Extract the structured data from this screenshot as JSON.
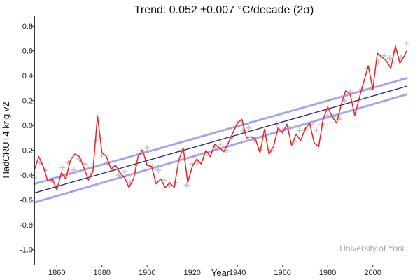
{
  "chart_data": {
    "type": "line",
    "title": "Trend: 0.052 ±0.007 °C/decade (2σ)",
    "xlabel": "Year",
    "ylabel": "HadCRUT4 krig v2",
    "xlim": [
      1850,
      2015
    ],
    "ylim": [
      -1.12,
      0.88
    ],
    "x_ticks": [
      1860,
      1880,
      1900,
      1920,
      1940,
      1960,
      1980,
      2000
    ],
    "y_ticks": [
      -1.0,
      -0.8,
      -0.6,
      -0.4,
      -0.2,
      0.0,
      0.2,
      0.4,
      0.6,
      0.8
    ],
    "grid": false,
    "watermark": "University of York",
    "colors": {
      "monthly_points": "#c4c4c4",
      "running_mean": "#ee2222",
      "trend": "#1f1f8f",
      "trend_interval": "#9c9cf0"
    },
    "series": [
      {
        "kind": "scatter",
        "x": [
          1850,
          1852.5,
          1855,
          1857.5,
          1860,
          1862.5,
          1865,
          1867.5,
          1870,
          1872.5,
          1875,
          1877.5,
          1880,
          1882.5,
          1885,
          1887.5,
          1890,
          1892.5,
          1895,
          1897.5,
          1900,
          1902.5,
          1905,
          1907.5,
          1910,
          1912.5,
          1915,
          1917.5,
          1920,
          1922.5,
          1925,
          1927.5,
          1930,
          1932.5,
          1935,
          1937.5,
          1940,
          1942.5,
          1945,
          1947.5,
          1950,
          1952.5,
          1955,
          1957.5,
          1960,
          1962.5,
          1965,
          1967.5,
          1970,
          1972.5,
          1975,
          1977.5,
          1980,
          1982.5,
          1985,
          1987.5,
          1990,
          1992.5,
          1995,
          1997.5,
          2000,
          2002.5,
          2005,
          2007.5,
          2010,
          2012.5,
          2015
        ],
        "y": [
          -0.42,
          -0.3,
          -0.36,
          -0.44,
          -0.49,
          -0.34,
          -0.3,
          -0.36,
          -0.27,
          -0.31,
          -0.39,
          -0.12,
          -0.24,
          -0.3,
          -0.36,
          -0.4,
          -0.37,
          -0.46,
          -0.32,
          -0.2,
          -0.18,
          -0.32,
          -0.36,
          -0.44,
          -0.48,
          -0.46,
          -0.2,
          -0.48,
          -0.31,
          -0.3,
          -0.26,
          -0.24,
          -0.17,
          -0.15,
          -0.2,
          -0.1,
          0.02,
          -0.04,
          -0.02,
          -0.12,
          -0.2,
          -0.05,
          -0.2,
          0.01,
          -0.04,
          -0.01,
          -0.13,
          -0.04,
          -0.04,
          0.01,
          -0.04,
          0.01,
          0.08,
          0.07,
          0.05,
          0.2,
          0.27,
          0.1,
          0.29,
          0.46,
          0.31,
          0.51,
          0.56,
          0.54,
          0.6,
          0.55,
          0.66
        ]
      },
      {
        "kind": "running_mean",
        "x": [
          1850,
          1852,
          1854,
          1856,
          1858,
          1860,
          1862,
          1864,
          1866,
          1868,
          1870,
          1872,
          1874,
          1876,
          1878,
          1880,
          1882,
          1884,
          1886,
          1888,
          1890,
          1892,
          1894,
          1896,
          1898,
          1900,
          1902,
          1904,
          1906,
          1908,
          1910,
          1912,
          1914,
          1916,
          1918,
          1920,
          1922,
          1924,
          1926,
          1928,
          1930,
          1932,
          1934,
          1936,
          1938,
          1940,
          1942,
          1944,
          1946,
          1948,
          1950,
          1952,
          1954,
          1956,
          1958,
          1960,
          1962,
          1964,
          1966,
          1968,
          1970,
          1972,
          1974,
          1976,
          1978,
          1980,
          1982,
          1984,
          1986,
          1988,
          1990,
          1992,
          1994,
          1996,
          1998,
          2000,
          2002,
          2004,
          2006,
          2008,
          2010,
          2012,
          2014,
          2015
        ],
        "y": [
          -0.36,
          -0.25,
          -0.33,
          -0.45,
          -0.43,
          -0.52,
          -0.38,
          -0.43,
          -0.28,
          -0.23,
          -0.25,
          -0.34,
          -0.44,
          -0.37,
          0.08,
          -0.22,
          -0.25,
          -0.35,
          -0.32,
          -0.38,
          -0.42,
          -0.5,
          -0.43,
          -0.25,
          -0.2,
          -0.32,
          -0.33,
          -0.47,
          -0.43,
          -0.5,
          -0.46,
          -0.5,
          -0.28,
          -0.18,
          -0.46,
          -0.33,
          -0.27,
          -0.31,
          -0.2,
          -0.25,
          -0.15,
          -0.18,
          -0.21,
          -0.14,
          -0.06,
          0.02,
          0.05,
          -0.1,
          -0.09,
          -0.11,
          -0.22,
          -0.03,
          -0.23,
          -0.17,
          -0.02,
          -0.06,
          0.01,
          -0.16,
          -0.07,
          -0.12,
          -0.03,
          0.02,
          -0.14,
          -0.17,
          0.05,
          0.15,
          0.07,
          0.02,
          0.17,
          0.28,
          0.25,
          0.08,
          0.22,
          0.35,
          0.48,
          0.29,
          0.58,
          0.55,
          0.52,
          0.46,
          0.64,
          0.5,
          0.56,
          0.6
        ]
      },
      {
        "kind": "trend",
        "x": [
          1850,
          2015
        ],
        "y": [
          -0.543,
          0.315
        ]
      },
      {
        "kind": "trend_upper",
        "x": [
          1850,
          2015
        ],
        "y": [
          -0.47,
          0.38
        ]
      },
      {
        "kind": "trend_lower",
        "x": [
          1850,
          2015
        ],
        "y": [
          -0.62,
          0.25
        ]
      }
    ]
  }
}
